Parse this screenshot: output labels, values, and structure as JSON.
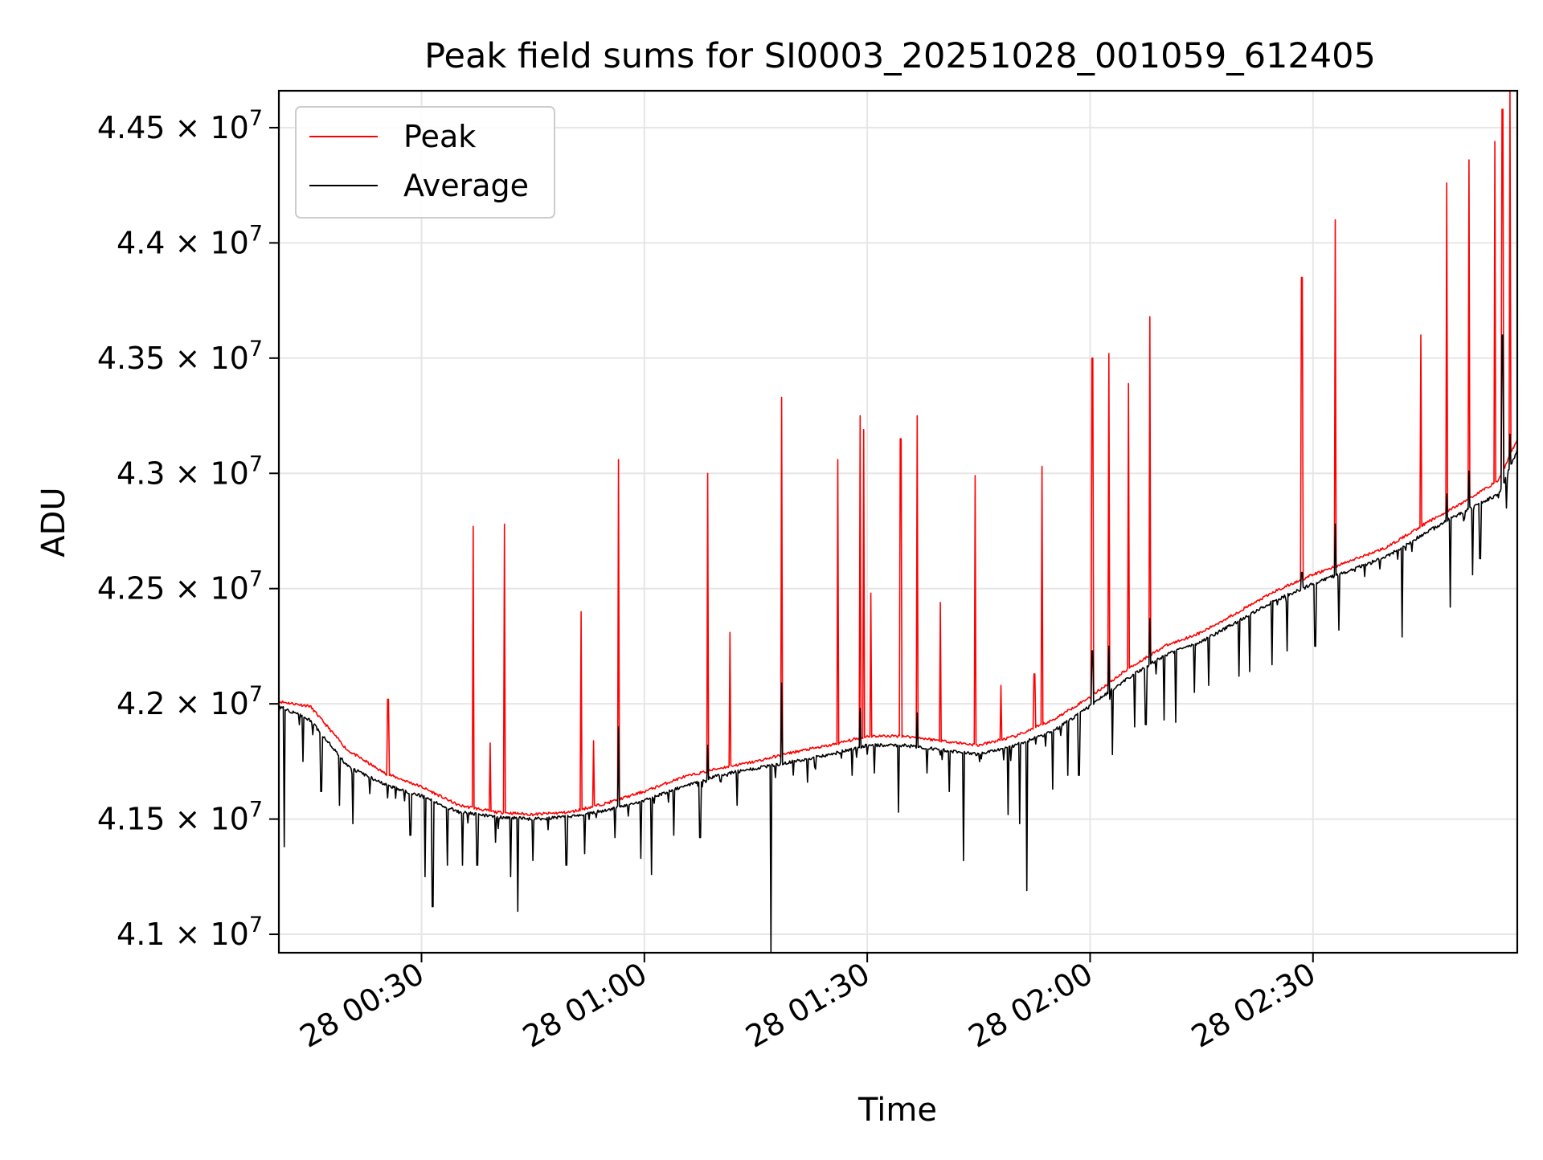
{
  "chart_data": {
    "type": "line",
    "title": "Peak field sums for SI0003_20251028_001059_612405",
    "xlabel": "Time",
    "ylabel": "ADU",
    "xlim_minutes": [
      10.8,
      177.5
    ],
    "ylim": [
      40920000,
      44660000
    ],
    "grid": true,
    "legend_position": "top-left",
    "x_ticks": [
      {
        "minutes": 30,
        "label": "28 00:30"
      },
      {
        "minutes": 60,
        "label": "28 01:00"
      },
      {
        "minutes": 90,
        "label": "28 01:30"
      },
      {
        "minutes": 120,
        "label": "28 02:00"
      },
      {
        "minutes": 150,
        "label": "28 02:30"
      }
    ],
    "y_ticks": [
      {
        "value": 41000000,
        "mantissa": "4.1"
      },
      {
        "value": 41500000,
        "mantissa": "4.15"
      },
      {
        "value": 42000000,
        "mantissa": "4.2"
      },
      {
        "value": 42500000,
        "mantissa": "4.25"
      },
      {
        "value": 43000000,
        "mantissa": "4.3"
      },
      {
        "value": 43500000,
        "mantissa": "4.35"
      },
      {
        "value": 44000000,
        "mantissa": "4.4"
      },
      {
        "value": 44500000,
        "mantissa": "4.45"
      }
    ],
    "y_tick_suffix": "× 10",
    "y_tick_exponent": "7",
    "series": [
      {
        "name": "Peak",
        "color": "#ff0000",
        "baseline": [
          [
            10.8,
            42010000
          ],
          [
            15,
            41990000
          ],
          [
            20,
            41800000
          ],
          [
            25,
            41700000
          ],
          [
            30,
            41640000
          ],
          [
            35,
            41560000
          ],
          [
            40,
            41530000
          ],
          [
            45,
            41520000
          ],
          [
            50,
            41530000
          ],
          [
            55,
            41570000
          ],
          [
            60,
            41620000
          ],
          [
            65,
            41680000
          ],
          [
            70,
            41720000
          ],
          [
            75,
            41750000
          ],
          [
            80,
            41790000
          ],
          [
            85,
            41820000
          ],
          [
            90,
            41860000
          ],
          [
            95,
            41860000
          ],
          [
            100,
            41840000
          ],
          [
            105,
            41820000
          ],
          [
            110,
            41860000
          ],
          [
            115,
            41930000
          ],
          [
            120,
            42030000
          ],
          [
            125,
            42150000
          ],
          [
            130,
            42250000
          ],
          [
            135,
            42310000
          ],
          [
            140,
            42400000
          ],
          [
            145,
            42490000
          ],
          [
            150,
            42560000
          ],
          [
            155,
            42620000
          ],
          [
            160,
            42680000
          ],
          [
            165,
            42780000
          ],
          [
            170,
            42870000
          ],
          [
            175,
            42970000
          ],
          [
            177.5,
            43150000
          ]
        ],
        "spikes": [
          [
            25.5,
            42020000
          ],
          [
            37,
            42770000
          ],
          [
            39.2,
            41830000
          ],
          [
            41.2,
            42780000
          ],
          [
            51.5,
            42400000
          ],
          [
            53.2,
            41840000
          ],
          [
            56.5,
            43060000
          ],
          [
            68.5,
            43000000
          ],
          [
            71.5,
            42310000
          ],
          [
            78.5,
            43330000
          ],
          [
            86,
            43060000
          ],
          [
            89,
            43250000
          ],
          [
            89.5,
            43190000
          ],
          [
            90.5,
            42480000
          ],
          [
            94.5,
            43150000
          ],
          [
            96.7,
            43250000
          ],
          [
            99.8,
            42440000
          ],
          [
            104.5,
            42990000
          ],
          [
            108,
            42080000
          ],
          [
            112.5,
            42130000
          ],
          [
            113.5,
            43030000
          ],
          [
            120.3,
            43500000
          ],
          [
            122.5,
            43520000
          ],
          [
            125.2,
            43390000
          ],
          [
            128,
            43680000
          ],
          [
            148.5,
            43850000
          ],
          [
            153,
            44100000
          ],
          [
            164.5,
            43600000
          ],
          [
            168,
            44260000
          ],
          [
            171,
            44360000
          ],
          [
            174.5,
            44440000
          ],
          [
            175.5,
            44580000
          ],
          [
            176.5,
            44660000
          ]
        ]
      },
      {
        "name": "Average",
        "color": "#000000",
        "baseline": [
          [
            10.8,
            41990000
          ],
          [
            15,
            41930000
          ],
          [
            20,
            41730000
          ],
          [
            25,
            41650000
          ],
          [
            30,
            41600000
          ],
          [
            35,
            41530000
          ],
          [
            40,
            41510000
          ],
          [
            45,
            41500000
          ],
          [
            50,
            41510000
          ],
          [
            55,
            41540000
          ],
          [
            60,
            41580000
          ],
          [
            65,
            41640000
          ],
          [
            70,
            41690000
          ],
          [
            75,
            41720000
          ],
          [
            80,
            41750000
          ],
          [
            85,
            41780000
          ],
          [
            90,
            41820000
          ],
          [
            95,
            41820000
          ],
          [
            100,
            41800000
          ],
          [
            105,
            41780000
          ],
          [
            110,
            41820000
          ],
          [
            115,
            41880000
          ],
          [
            120,
            41990000
          ],
          [
            125,
            42110000
          ],
          [
            130,
            42210000
          ],
          [
            135,
            42270000
          ],
          [
            140,
            42360000
          ],
          [
            145,
            42450000
          ],
          [
            150,
            42520000
          ],
          [
            155,
            42580000
          ],
          [
            160,
            42640000
          ],
          [
            165,
            42740000
          ],
          [
            170,
            42830000
          ],
          [
            175,
            42910000
          ],
          [
            177.5,
            43100000
          ]
        ],
        "dips": [
          [
            11.5,
            41380000
          ],
          [
            14,
            41750000
          ],
          [
            16.5,
            41620000
          ],
          [
            19,
            41560000
          ],
          [
            20.8,
            41480000
          ],
          [
            23,
            41610000
          ],
          [
            26.5,
            41590000
          ],
          [
            28.5,
            41430000
          ],
          [
            30.5,
            41250000
          ],
          [
            31.5,
            41120000
          ],
          [
            33.5,
            41300000
          ],
          [
            35.5,
            41300000
          ],
          [
            37.5,
            41300000
          ],
          [
            40,
            41400000
          ],
          [
            42,
            41250000
          ],
          [
            43,
            41100000
          ],
          [
            45,
            41320000
          ],
          [
            49.5,
            41300000
          ],
          [
            52,
            41350000
          ],
          [
            56,
            41420000
          ],
          [
            59.5,
            41330000
          ],
          [
            61,
            41260000
          ],
          [
            64,
            41430000
          ],
          [
            67.5,
            41420000
          ],
          [
            72.5,
            41560000
          ],
          [
            77,
            40920000
          ],
          [
            82,
            41660000
          ],
          [
            88,
            41690000
          ],
          [
            91,
            41700000
          ],
          [
            94.2,
            41530000
          ],
          [
            98,
            41700000
          ],
          [
            101,
            41620000
          ],
          [
            103,
            41320000
          ],
          [
            109,
            41520000
          ],
          [
            110.5,
            41480000
          ],
          [
            111.5,
            41190000
          ],
          [
            115,
            41630000
          ],
          [
            117,
            41690000
          ],
          [
            118.5,
            41690000
          ],
          [
            123,
            41780000
          ],
          [
            126,
            41900000
          ],
          [
            127.5,
            41910000
          ],
          [
            130,
            41930000
          ],
          [
            131.5,
            41920000
          ],
          [
            134,
            42050000
          ],
          [
            136,
            42080000
          ],
          [
            140,
            42120000
          ],
          [
            141.5,
            42140000
          ],
          [
            144.5,
            42170000
          ],
          [
            146.5,
            42230000
          ],
          [
            150.3,
            42250000
          ],
          [
            153.5,
            42320000
          ],
          [
            162,
            42290000
          ],
          [
            168.5,
            42420000
          ],
          [
            171.5,
            42560000
          ],
          [
            172.5,
            42630000
          ],
          [
            176,
            42850000
          ]
        ],
        "spikes": [
          [
            56.5,
            41900000
          ],
          [
            68.5,
            41820000
          ],
          [
            78.5,
            42090000
          ],
          [
            89,
            41980000
          ],
          [
            96.7,
            41960000
          ],
          [
            120.3,
            42230000
          ],
          [
            122.5,
            42250000
          ],
          [
            128,
            42370000
          ],
          [
            148.5,
            42570000
          ],
          [
            153,
            42780000
          ],
          [
            168,
            42910000
          ],
          [
            171,
            43010000
          ],
          [
            175.5,
            43600000
          ],
          [
            176.5,
            43170000
          ]
        ]
      }
    ]
  }
}
